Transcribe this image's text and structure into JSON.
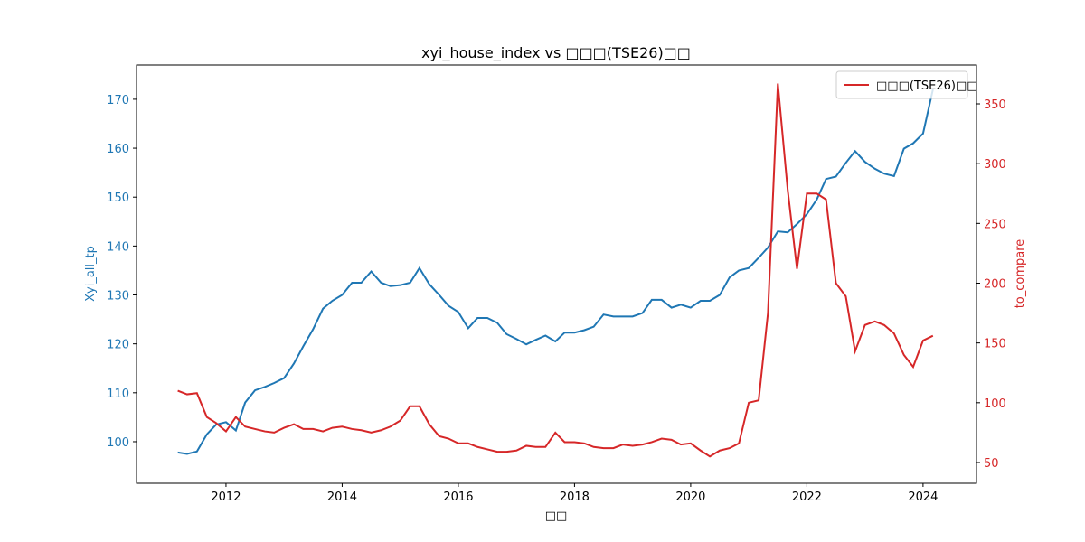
{
  "chart_data": {
    "type": "line",
    "title": "xyi_house_index vs □□□(TSE26)□□",
    "x_label": "□□",
    "y_label": "Xyi_all_tp",
    "y2_label": "to_compare",
    "x": [
      2011.17,
      2011.33,
      2011.5,
      2011.67,
      2011.83,
      2012,
      2012.17,
      2012.33,
      2012.5,
      2012.67,
      2012.83,
      2013,
      2013.17,
      2013.33,
      2013.5,
      2013.67,
      2013.83,
      2014,
      2014.17,
      2014.33,
      2014.5,
      2014.67,
      2014.83,
      2015,
      2015.17,
      2015.33,
      2015.5,
      2015.67,
      2015.83,
      2016,
      2016.17,
      2016.33,
      2016.5,
      2016.67,
      2016.83,
      2017,
      2017.17,
      2017.33,
      2017.5,
      2017.67,
      2017.83,
      2018,
      2018.17,
      2018.33,
      2018.5,
      2018.67,
      2018.83,
      2019,
      2019.17,
      2019.33,
      2019.5,
      2019.67,
      2019.83,
      2020,
      2020.17,
      2020.33,
      2020.5,
      2020.67,
      2020.83,
      2021,
      2021.17,
      2021.33,
      2021.5,
      2021.67,
      2021.83,
      2022,
      2022.17,
      2022.33,
      2022.5,
      2022.67,
      2022.83,
      2023,
      2023.17,
      2023.33,
      2023.5,
      2023.67,
      2023.83,
      2024,
      2024.17
    ],
    "xlim": [
      2010.46,
      2024.92
    ],
    "xticks": [
      2012,
      2014,
      2016,
      2018,
      2020,
      2022,
      2024
    ],
    "ylim": [
      91.5,
      177
    ],
    "yticks": [
      100,
      110,
      120,
      130,
      140,
      150,
      160,
      170
    ],
    "y2lim": [
      32.6,
      382.5
    ],
    "y2ticks": [
      50,
      100,
      150,
      200,
      250,
      300,
      350
    ],
    "legend": "upper right",
    "series": [
      {
        "color": "#1f77b4",
        "axis": "y",
        "values": [
          97.8,
          97.5,
          98,
          101.5,
          103.5,
          104,
          102.3,
          108,
          110.5,
          111.2,
          112,
          113,
          116,
          119.5,
          123,
          127.2,
          128.8,
          130,
          132.5,
          132.5,
          134.8,
          132.5,
          131.8,
          132,
          132.5,
          135.5,
          132.2,
          130,
          127.8,
          126.5,
          123.2,
          125.3,
          125.3,
          124.3,
          122,
          121,
          119.9,
          120.8,
          121.7,
          120.5,
          122.3,
          122.3,
          122.8,
          123.5,
          126,
          125.6,
          125.6,
          125.6,
          126.3,
          129,
          129,
          127.4,
          128,
          127.4,
          128.8,
          128.8,
          130,
          133.6,
          135,
          135.5,
          137.6,
          139.7,
          143,
          142.8,
          144.5,
          146.5,
          149.5,
          153.7,
          154.2,
          157,
          159.4,
          157.2,
          155.8,
          154.8,
          154.3,
          159.9,
          161,
          163,
          172
        ]
      },
      {
        "name": "□□□(TSE26)□□",
        "color": "#d62728",
        "axis": "y2",
        "values": [
          110,
          107,
          108,
          88,
          83,
          76,
          88,
          80,
          78,
          76,
          75,
          79,
          82,
          78,
          78,
          76,
          79,
          80,
          78,
          77,
          75,
          77,
          80,
          85,
          97,
          97,
          82,
          72,
          70,
          66,
          66,
          63,
          61,
          59,
          59,
          60,
          64,
          63,
          63,
          75,
          67,
          67,
          66,
          63,
          62,
          62,
          65,
          64,
          65,
          67,
          70,
          69,
          65,
          66,
          60,
          55,
          60,
          62,
          66,
          100,
          102,
          175,
          367,
          278,
          212,
          275,
          275,
          270,
          200,
          189,
          143,
          165,
          168,
          165,
          158,
          140,
          130,
          152,
          156
        ]
      }
    ]
  }
}
